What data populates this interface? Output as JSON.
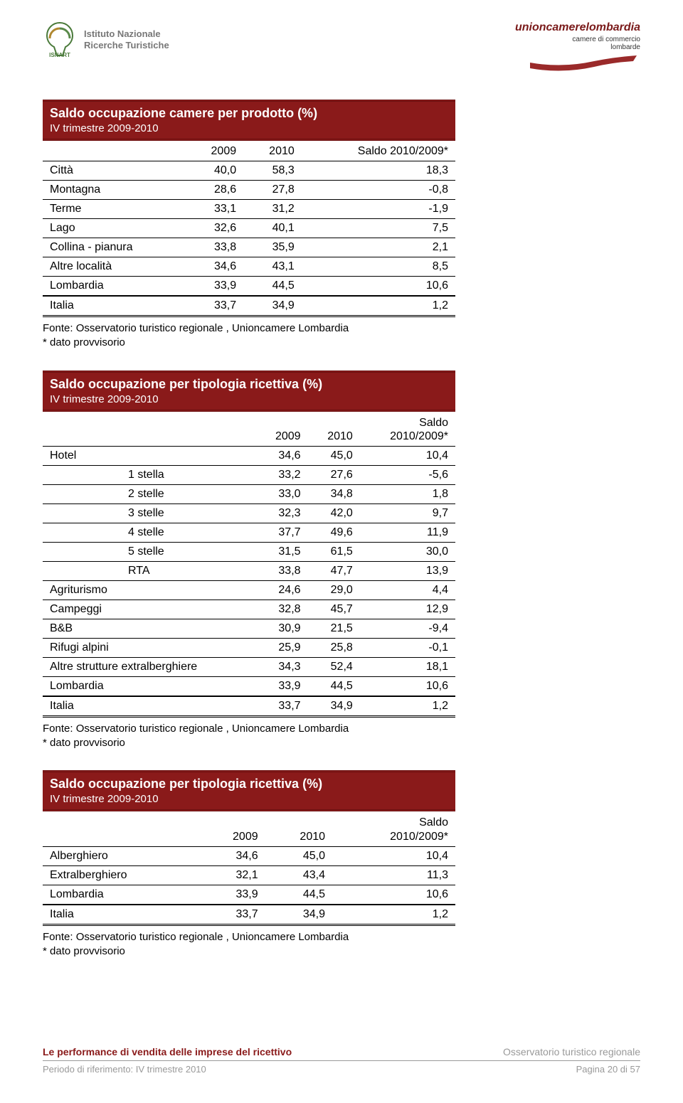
{
  "header": {
    "isnart_line1": "Istituto Nazionale",
    "isnart_line2": "Ricerche Turistiche",
    "isnart_label": "ISNART",
    "ucl_main": "unioncamerelombardia",
    "ucl_sub1": "camere di commercio",
    "ucl_sub2": "lombarde"
  },
  "colors": {
    "header_bg": "#8a1a1a",
    "header_text": "#ffffff",
    "accent": "#8a1a1a"
  },
  "tables": {
    "t1": {
      "title": "Saldo occupazione camere per prodotto (%)",
      "subtitle": "IV trimestre 2009-2010",
      "col_headers": [
        "",
        "2009",
        "2010",
        "Saldo 2010/2009*"
      ],
      "rows": [
        {
          "label": "Città",
          "c1": "40,0",
          "c2": "58,3",
          "c3": "18,3"
        },
        {
          "label": "Montagna",
          "c1": "28,6",
          "c2": "27,8",
          "c3": "-0,8"
        },
        {
          "label": "Terme",
          "c1": "33,1",
          "c2": "31,2",
          "c3": "-1,9"
        },
        {
          "label": "Lago",
          "c1": "32,6",
          "c2": "40,1",
          "c3": "7,5"
        },
        {
          "label": "Collina - pianura",
          "c1": "33,8",
          "c2": "35,9",
          "c3": "2,1"
        },
        {
          "label": "Altre località",
          "c1": "34,6",
          "c2": "43,1",
          "c3": "8,5"
        },
        {
          "label": "Lombardia",
          "c1": "33,9",
          "c2": "44,5",
          "c3": "10,6",
          "pre_total": true
        },
        {
          "label": "Italia",
          "c1": "33,7",
          "c2": "34,9",
          "c3": "1,2",
          "total": true
        }
      ]
    },
    "t2": {
      "title": "Saldo occupazione per tipologia ricettiva (%)",
      "subtitle": "IV trimestre 2009-2010",
      "col_headers": [
        "",
        "2009",
        "2010"
      ],
      "saldo_top": "Saldo",
      "saldo_bottom": "2010/2009*",
      "rows": [
        {
          "label": "Hotel",
          "c1": "34,6",
          "c2": "45,0",
          "c3": "10,4"
        },
        {
          "label": "1 stella",
          "c1": "33,2",
          "c2": "27,6",
          "c3": "-5,6",
          "indent": true
        },
        {
          "label": "2 stelle",
          "c1": "33,0",
          "c2": "34,8",
          "c3": "1,8",
          "indent": true
        },
        {
          "label": "3 stelle",
          "c1": "32,3",
          "c2": "42,0",
          "c3": "9,7",
          "indent": true
        },
        {
          "label": "4 stelle",
          "c1": "37,7",
          "c2": "49,6",
          "c3": "11,9",
          "indent": true
        },
        {
          "label": "5 stelle",
          "c1": "31,5",
          "c2": "61,5",
          "c3": "30,0",
          "indent": true
        },
        {
          "label": "RTA",
          "c1": "33,8",
          "c2": "47,7",
          "c3": "13,9",
          "indent": true
        },
        {
          "label": "Agriturismo",
          "c1": "24,6",
          "c2": "29,0",
          "c3": "4,4"
        },
        {
          "label": "Campeggi",
          "c1": "32,8",
          "c2": "45,7",
          "c3": "12,9"
        },
        {
          "label": "B&B",
          "c1": "30,9",
          "c2": "21,5",
          "c3": "-9,4"
        },
        {
          "label": "Rifugi alpini",
          "c1": "25,9",
          "c2": "25,8",
          "c3": "-0,1"
        },
        {
          "label": "Altre strutture extralberghiere",
          "c1": "34,3",
          "c2": "52,4",
          "c3": "18,1"
        },
        {
          "label": "Lombardia",
          "c1": "33,9",
          "c2": "44,5",
          "c3": "10,6",
          "pre_total": true
        },
        {
          "label": "Italia",
          "c1": "33,7",
          "c2": "34,9",
          "c3": "1,2",
          "total": true
        }
      ]
    },
    "t3": {
      "title": "Saldo occupazione per tipologia ricettiva (%)",
      "subtitle": "IV trimestre 2009-2010",
      "col_headers": [
        "",
        "2009",
        "2010"
      ],
      "saldo_top": "Saldo",
      "saldo_bottom": "2010/2009*",
      "rows": [
        {
          "label": "Alberghiero",
          "c1": "34,6",
          "c2": "45,0",
          "c3": "10,4"
        },
        {
          "label": "Extralberghiero",
          "c1": "32,1",
          "c2": "43,4",
          "c3": "11,3"
        },
        {
          "label": "Lombardia",
          "c1": "33,9",
          "c2": "44,5",
          "c3": "10,6",
          "pre_total": true
        },
        {
          "label": "Italia",
          "c1": "33,7",
          "c2": "34,9",
          "c3": "1,2",
          "total": true
        }
      ]
    }
  },
  "source_line1": "Fonte: Osservatorio turistico regionale , Unioncamere Lombardia",
  "source_line2": "* dato provvisorio",
  "footer": {
    "left_bold": "Le performance di vendita delle imprese del ricettivo",
    "right_grey": "Osservatorio turistico regionale",
    "bottom_left": "Periodo di riferimento: IV trimestre 2010",
    "bottom_right": "Pagina 20 di 57"
  }
}
